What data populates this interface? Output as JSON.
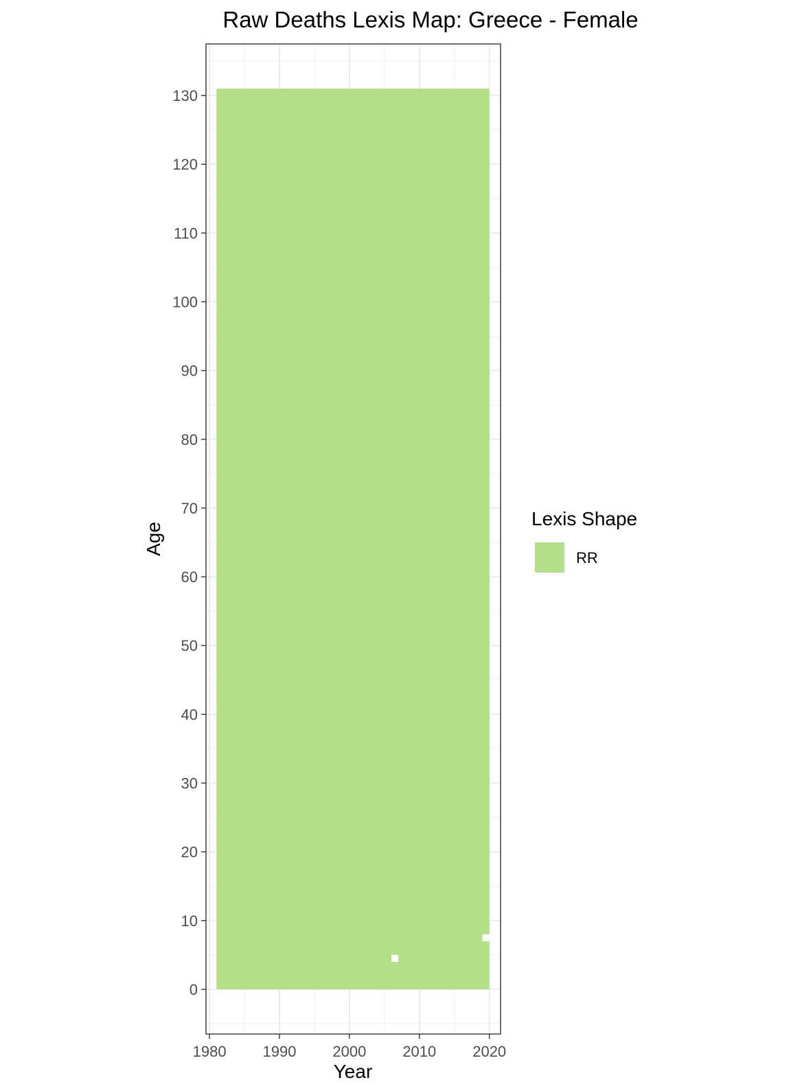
{
  "chart_data": {
    "type": "heatmap",
    "title": "Raw Deaths Lexis Map: Greece - Female",
    "xlabel": "Year",
    "ylabel": "Age",
    "xlim": [
      1979.5,
      2021.6
    ],
    "ylim": [
      -6.5,
      137.5
    ],
    "x_ticks": [
      1980,
      1990,
      2000,
      2010,
      2020
    ],
    "y_ticks": [
      0,
      10,
      20,
      30,
      40,
      50,
      60,
      70,
      80,
      90,
      100,
      110,
      120,
      130
    ],
    "grid": true,
    "legend": {
      "title": "Lexis Shape",
      "position": "right",
      "entries": [
        {
          "label": "RR",
          "color": "#b3df8a"
        }
      ]
    },
    "series": [
      {
        "name": "RR",
        "color": "#b3df8a",
        "region": {
          "x": [
            1981,
            2020
          ],
          "y": [
            0,
            131
          ]
        },
        "missing_cells": [
          {
            "year": 2006,
            "age": 4
          },
          {
            "year": 2019,
            "age": 7
          }
        ]
      }
    ]
  }
}
